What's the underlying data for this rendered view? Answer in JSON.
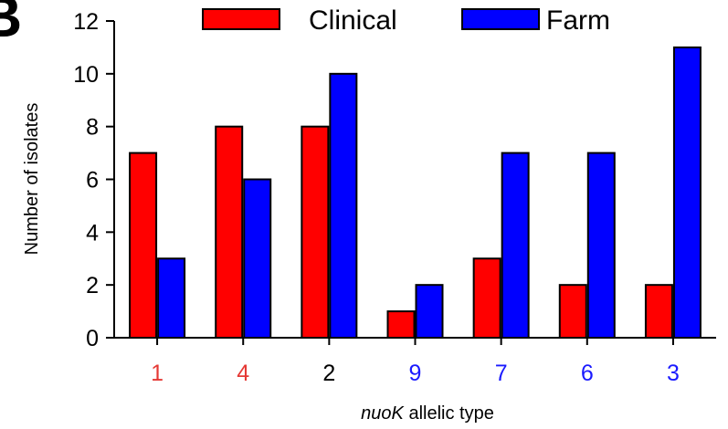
{
  "panel_letter": "B",
  "chart_data": {
    "type": "bar",
    "categories": [
      "1",
      "4",
      "2",
      "9",
      "7",
      "6",
      "3"
    ],
    "category_colors": [
      "#e53935",
      "#e53935",
      "#000000",
      "#1a1aff",
      "#1a1aff",
      "#1a1aff",
      "#1a1aff"
    ],
    "series": [
      {
        "name": "Clinical",
        "color": "#ff0000",
        "values": [
          7,
          8,
          8,
          1,
          3,
          2,
          2
        ]
      },
      {
        "name": "Farm",
        "color": "#0000ff",
        "values": [
          3,
          6,
          10,
          2,
          7,
          7,
          11
        ]
      }
    ],
    "xlabel_italic": "nuoK",
    "xlabel_rest": " allelic type",
    "ylabel": "Number of isolates",
    "ylim": [
      0,
      12
    ],
    "yticks": [
      0,
      2,
      4,
      6,
      8,
      10,
      12
    ],
    "legend_position": "top",
    "grid": false
  }
}
